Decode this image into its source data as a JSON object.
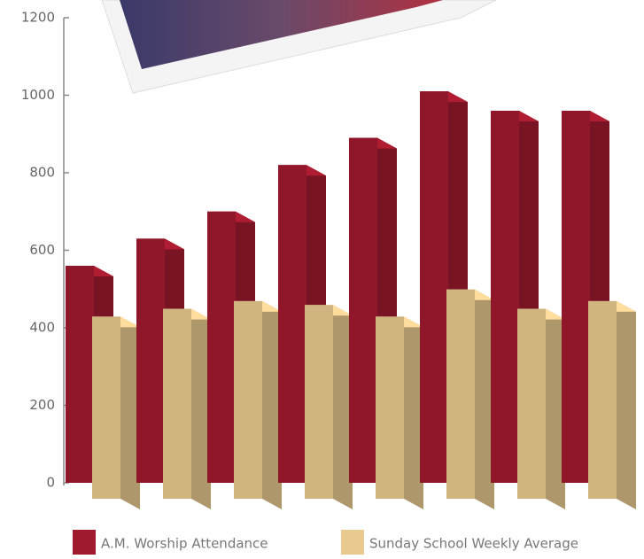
{
  "chart_data": {
    "type": "bar3d",
    "categories": [
      null,
      null,
      null,
      null,
      null,
      null,
      null,
      null
    ],
    "series": [
      {
        "name": "A.M. Worship Attendance",
        "color": "#a01a2e",
        "values": [
          560,
          630,
          700,
          820,
          890,
          1010,
          960,
          960
        ]
      },
      {
        "name": "Sunday School Weekly Average",
        "color": "#e8c98e",
        "values": [
          470,
          490,
          510,
          500,
          470,
          540,
          490,
          510
        ]
      }
    ],
    "ylim": [
      0,
      1200
    ],
    "yticks": [
      0,
      200,
      400,
      600,
      800,
      1000,
      1200
    ]
  }
}
